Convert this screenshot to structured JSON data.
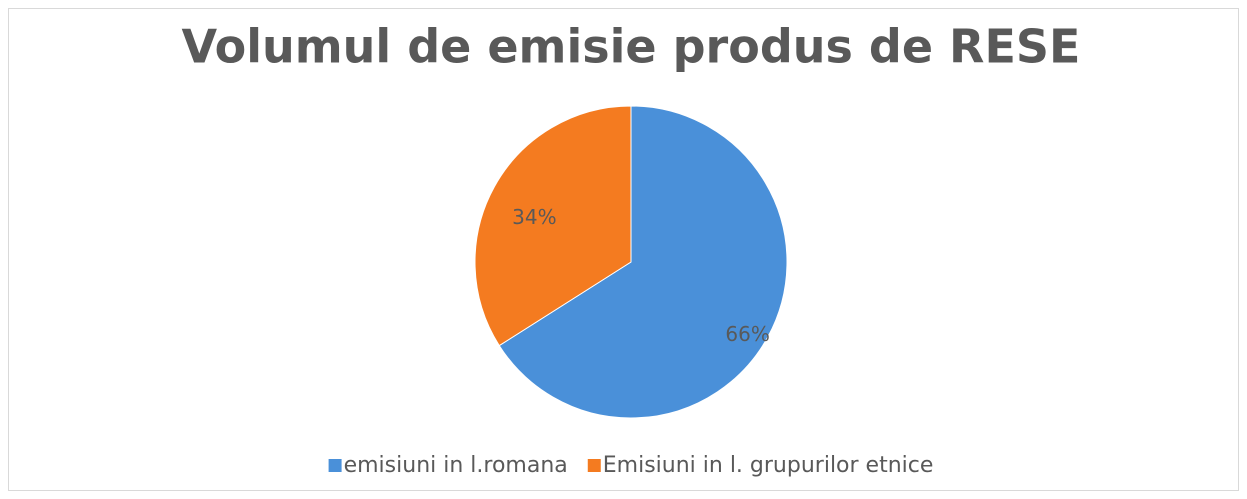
{
  "chart_data": {
    "type": "pie",
    "title": "Volumul de emisie produs de RESE",
    "categories": [
      "emisiuni in l.romana",
      "Emisiuni in l. grupurilor etnice"
    ],
    "values": [
      66,
      34
    ],
    "value_labels": [
      "66%",
      "34%"
    ],
    "colors": [
      "#4a90d9",
      "#f47b20"
    ],
    "legend": "bottom"
  }
}
